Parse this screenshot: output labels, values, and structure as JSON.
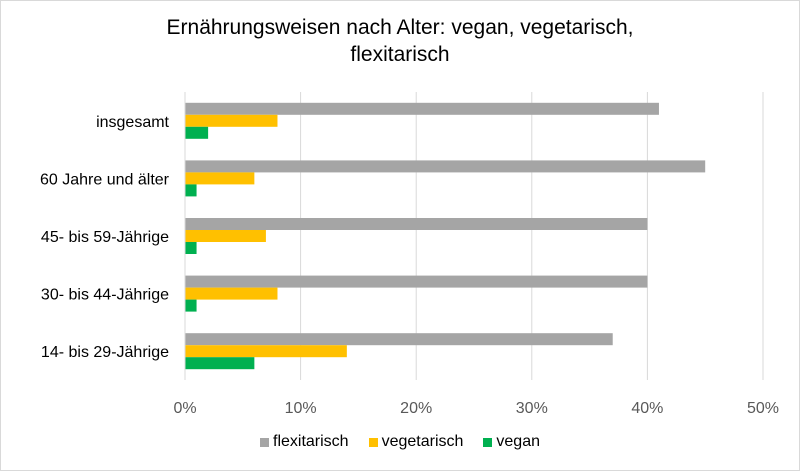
{
  "chart_data": {
    "type": "bar",
    "orientation": "horizontal",
    "title_lines": [
      "Ernährungsweisen nach Alter: vegan, vegetarisch,",
      "flexitarisch"
    ],
    "categories": [
      "insgesamt",
      "60 Jahre und älter",
      "45- bis 59-Jährige",
      "30- bis 44-Jährige",
      "14- bis 29-Jährige"
    ],
    "series": [
      {
        "name": "flexitarisch",
        "color": "#a5a5a5",
        "values": [
          41,
          45,
          40,
          40,
          37
        ]
      },
      {
        "name": "vegetarisch",
        "color": "#ffc000",
        "values": [
          8,
          6,
          7,
          8,
          14
        ]
      },
      {
        "name": "vegan",
        "color": "#00b050",
        "values": [
          2,
          1,
          1,
          1,
          6
        ]
      }
    ],
    "x_ticks": [
      "0%",
      "10%",
      "20%",
      "30%",
      "40%",
      "50%"
    ],
    "xlim": [
      0,
      50
    ],
    "grid": true,
    "legend_position": "bottom"
  }
}
